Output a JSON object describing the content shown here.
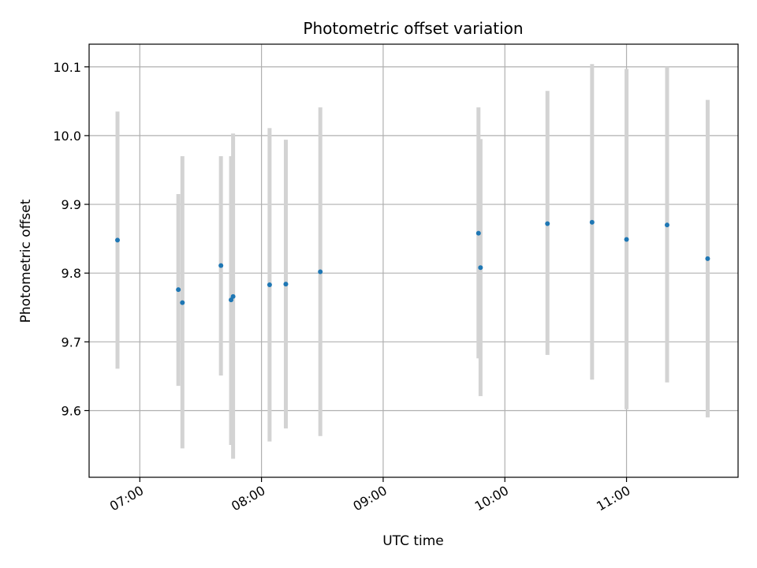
{
  "chart_data": {
    "type": "scatter",
    "title": "Photometric offset variation",
    "xlabel": "UTC time",
    "ylabel": "Photometric offset",
    "x_unit": "UTC",
    "xlim": [
      "06:35",
      "11:55"
    ],
    "ylim": [
      9.503,
      10.133
    ],
    "x_ticks": [
      "07:00",
      "08:00",
      "09:00",
      "10:00",
      "11:00"
    ],
    "y_ticks": [
      "9.6",
      "9.7",
      "9.8",
      "9.9",
      "10.0",
      "10.1"
    ],
    "grid": true,
    "colors": {
      "point": "#1f77b4",
      "errorbar": "#d3d3d3",
      "grid": "#b0b0b0"
    },
    "points": [
      {
        "x": "06:49",
        "y": 9.848,
        "ylow": 9.661,
        "yhigh": 10.035
      },
      {
        "x": "07:19",
        "y": 9.776,
        "ylow": 9.636,
        "yhigh": 9.915
      },
      {
        "x": "07:21",
        "y": 9.757,
        "ylow": 9.545,
        "yhigh": 9.97
      },
      {
        "x": "07:40",
        "y": 9.811,
        "ylow": 9.651,
        "yhigh": 9.97
      },
      {
        "x": "07:45",
        "y": 9.761,
        "ylow": 9.55,
        "yhigh": 9.97
      },
      {
        "x": "07:46",
        "y": 9.766,
        "ylow": 9.53,
        "yhigh": 10.003
      },
      {
        "x": "08:04",
        "y": 9.783,
        "ylow": 9.555,
        "yhigh": 10.011
      },
      {
        "x": "08:12",
        "y": 9.784,
        "ylow": 9.574,
        "yhigh": 9.994
      },
      {
        "x": "08:29",
        "y": 9.802,
        "ylow": 9.563,
        "yhigh": 10.041
      },
      {
        "x": "09:47",
        "y": 9.858,
        "ylow": 9.676,
        "yhigh": 10.041
      },
      {
        "x": "09:48",
        "y": 9.808,
        "ylow": 9.621,
        "yhigh": 9.995
      },
      {
        "x": "10:21",
        "y": 9.872,
        "ylow": 9.681,
        "yhigh": 10.065
      },
      {
        "x": "10:43",
        "y": 9.874,
        "ylow": 9.645,
        "yhigh": 10.104
      },
      {
        "x": "11:00",
        "y": 9.849,
        "ylow": 9.602,
        "yhigh": 10.097
      },
      {
        "x": "11:20",
        "y": 9.87,
        "ylow": 9.641,
        "yhigh": 10.1
      },
      {
        "x": "11:40",
        "y": 9.821,
        "ylow": 9.59,
        "yhigh": 10.052
      }
    ]
  }
}
